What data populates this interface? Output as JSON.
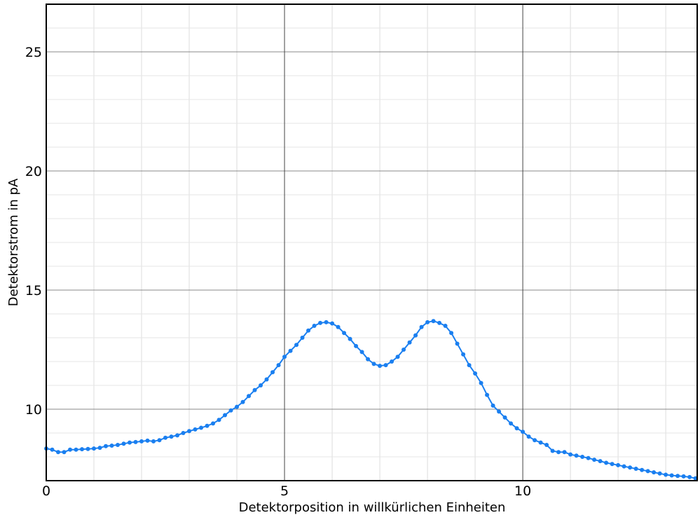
{
  "chart_data": {
    "type": "line",
    "xlabel": "Detektorposition in willkürlichen Einheiten",
    "ylabel": "Detektorstrom in pA",
    "xlim": [
      0,
      13.66
    ],
    "ylim": [
      7,
      27
    ],
    "xticks": [
      0,
      5,
      10
    ],
    "yticks": [
      10,
      15,
      20,
      25
    ],
    "xminorticks": [
      1,
      2,
      3,
      4,
      6,
      7,
      8,
      9,
      11,
      12,
      13
    ],
    "yminorticks": [
      8,
      9,
      11,
      12,
      13,
      14,
      16,
      17,
      18,
      19,
      21,
      22,
      23,
      24,
      26
    ],
    "grid": true,
    "series": [
      {
        "name": "Detektorstrom",
        "color": "#1a7ff0",
        "x": [
          0,
          0.125,
          0.25,
          0.375,
          0.5,
          0.625,
          0.75,
          0.875,
          1,
          1.125,
          1.25,
          1.375,
          1.5,
          1.625,
          1.75,
          1.875,
          2,
          2.125,
          2.25,
          2.375,
          2.5,
          2.625,
          2.75,
          2.875,
          3,
          3.125,
          3.25,
          3.375,
          3.5,
          3.625,
          3.75,
          3.875,
          4,
          4.125,
          4.25,
          4.375,
          4.5,
          4.625,
          4.75,
          4.875,
          5,
          5.125,
          5.25,
          5.375,
          5.5,
          5.625,
          5.75,
          5.875,
          6,
          6.125,
          6.25,
          6.375,
          6.5,
          6.625,
          6.75,
          6.875,
          7,
          7.125,
          7.25,
          7.375,
          7.5,
          7.625,
          7.75,
          7.875,
          8,
          8.125,
          8.25,
          8.375,
          8.5,
          8.625,
          8.75,
          8.875,
          9,
          9.125,
          9.25,
          9.375,
          9.5,
          9.625,
          9.75,
          9.875,
          10,
          10.125,
          10.25,
          10.375,
          10.5,
          10.625,
          10.75,
          10.875,
          11,
          11.125,
          11.25,
          11.375,
          11.5,
          11.625,
          11.75,
          11.875,
          12,
          12.125,
          12.25,
          12.375,
          12.5,
          12.625,
          12.75,
          12.875,
          13,
          13.125,
          13.25,
          13.375,
          13.5,
          13.625
        ],
        "values": [
          8.35,
          8.3,
          8.2,
          8.2,
          8.3,
          8.3,
          8.32,
          8.33,
          8.35,
          8.38,
          8.45,
          8.47,
          8.5,
          8.55,
          8.6,
          8.62,
          8.65,
          8.68,
          8.65,
          8.7,
          8.8,
          8.85,
          8.9,
          9.0,
          9.08,
          9.15,
          9.22,
          9.3,
          9.4,
          9.55,
          9.75,
          9.95,
          10.1,
          10.3,
          10.55,
          10.8,
          11.0,
          11.25,
          11.55,
          11.85,
          12.2,
          12.45,
          12.7,
          13.0,
          13.3,
          13.5,
          13.62,
          13.65,
          13.6,
          13.45,
          13.2,
          12.95,
          12.65,
          12.4,
          12.1,
          11.9,
          11.82,
          11.85,
          12.0,
          12.2,
          12.5,
          12.8,
          13.1,
          13.45,
          13.65,
          13.7,
          13.62,
          13.5,
          13.2,
          12.75,
          12.3,
          11.85,
          11.5,
          11.1,
          10.6,
          10.15,
          9.9,
          9.65,
          9.4,
          9.2,
          9.05,
          8.85,
          8.7,
          8.6,
          8.5,
          8.25,
          8.2,
          8.2,
          8.1,
          8.05,
          8.0,
          7.95,
          7.88,
          7.82,
          7.75,
          7.7,
          7.65,
          7.6,
          7.55,
          7.5,
          7.45,
          7.4,
          7.35,
          7.3,
          7.25,
          7.22,
          7.2,
          7.18,
          7.15,
          7.1
        ]
      }
    ]
  }
}
